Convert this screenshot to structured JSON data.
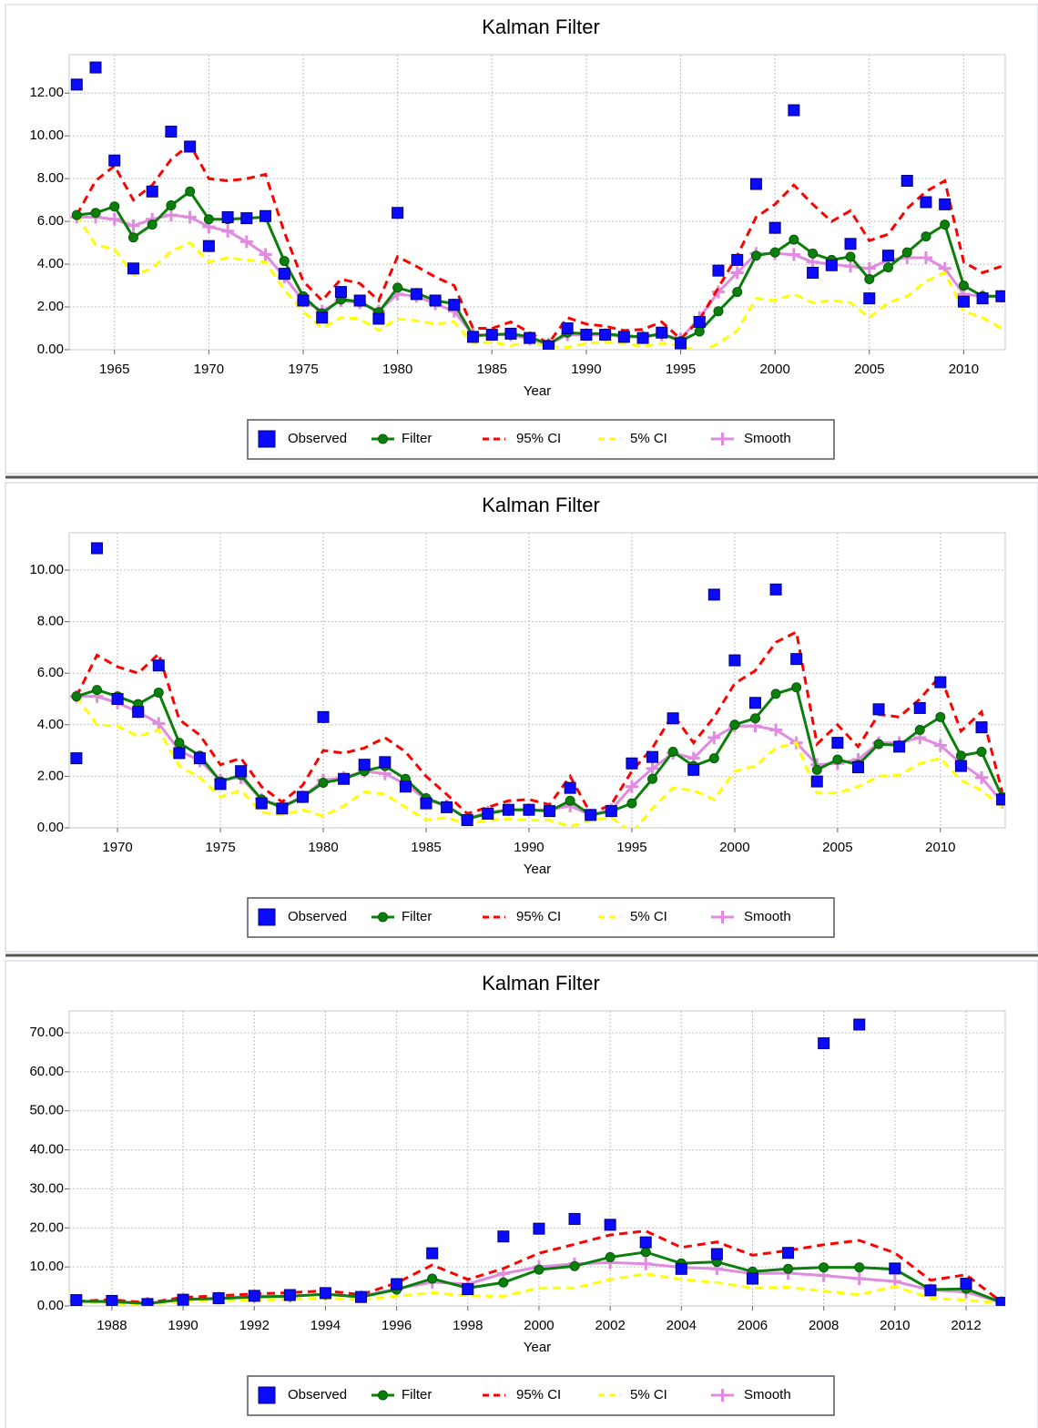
{
  "chart_data": [
    {
      "type": "line",
      "title": "Kalman Filter",
      "x_label": "Year",
      "grid": true,
      "legend": "bottom",
      "xlim": [
        1962.6,
        2012.2
      ],
      "ylim": [
        0,
        13.8
      ],
      "xticks": [
        1965,
        1970,
        1975,
        1980,
        1985,
        1990,
        1995,
        2000,
        2005,
        2010
      ],
      "yticks": [
        {
          "value": 0,
          "label": "0.00"
        },
        {
          "value": 2,
          "label": "2.00"
        },
        {
          "value": 4,
          "label": "4.00"
        },
        {
          "value": 6,
          "label": "6.00"
        },
        {
          "value": 8,
          "label": "8.00"
        },
        {
          "value": 10,
          "label": "10.00"
        },
        {
          "value": 12,
          "label": "12.00"
        }
      ],
      "x": [
        1963,
        1964,
        1965,
        1966,
        1967,
        1968,
        1969,
        1970,
        1971,
        1972,
        1973,
        1974,
        1975,
        1976,
        1977,
        1978,
        1979,
        1980,
        1981,
        1982,
        1983,
        1984,
        1985,
        1986,
        1987,
        1988,
        1989,
        1990,
        1991,
        1992,
        1993,
        1994,
        1995,
        1996,
        1997,
        1998,
        1999,
        2000,
        2001,
        2002,
        2003,
        2004,
        2005,
        2006,
        2007,
        2008,
        2009,
        2010,
        2011,
        2012
      ],
      "series": [
        {
          "name": "Observed",
          "color": "#0a0aff",
          "marker": "square",
          "line": false,
          "values": [
            12.4,
            13.2,
            8.85,
            3.8,
            7.4,
            10.2,
            9.5,
            4.85,
            6.2,
            6.15,
            6.25,
            3.55,
            2.3,
            1.5,
            2.7,
            2.3,
            1.45,
            6.4,
            2.6,
            2.3,
            2.1,
            0.6,
            0.7,
            0.75,
            0.55,
            0.15,
            1.0,
            0.7,
            0.7,
            0.6,
            0.55,
            0.8,
            0.3,
            1.3,
            3.7,
            4.2,
            7.75,
            5.7,
            11.2,
            3.6,
            3.95,
            4.95,
            2.4,
            4.4,
            7.9,
            6.9,
            6.8,
            2.25,
            2.4,
            2.5
          ]
        },
        {
          "name": "Filter",
          "color": "#0b7f0b",
          "marker": "circle",
          "line": true,
          "values": [
            6.3,
            6.4,
            6.7,
            5.25,
            5.85,
            6.75,
            7.4,
            6.1,
            6.1,
            6.15,
            6.2,
            4.15,
            2.5,
            1.7,
            2.35,
            2.25,
            1.75,
            2.9,
            2.65,
            2.3,
            2.15,
            0.65,
            0.7,
            0.75,
            0.6,
            0.25,
            0.8,
            0.75,
            0.75,
            0.65,
            0.6,
            0.75,
            0.4,
            0.85,
            1.8,
            2.7,
            4.4,
            4.55,
            5.15,
            4.5,
            4.2,
            4.35,
            3.3,
            3.85,
            4.55,
            5.3,
            5.85,
            3.0,
            2.5,
            2.5
          ]
        },
        {
          "name": "95% CI",
          "color": "#ff0000",
          "line": true,
          "dashed": true,
          "values": [
            6.3,
            7.9,
            8.6,
            7.0,
            7.7,
            8.9,
            9.6,
            8.0,
            7.9,
            8.0,
            8.2,
            5.5,
            3.2,
            2.3,
            3.3,
            3.1,
            2.3,
            4.35,
            3.9,
            3.4,
            3.0,
            1.0,
            1.0,
            1.3,
            0.8,
            0.3,
            1.5,
            1.2,
            1.1,
            0.9,
            0.95,
            1.3,
            0.5,
            1.4,
            2.9,
            4.4,
            6.2,
            6.8,
            7.7,
            6.8,
            6.0,
            6.5,
            5.1,
            5.4,
            6.6,
            7.4,
            7.9,
            4.1,
            3.6,
            3.9
          ]
        },
        {
          "name": "5% CI",
          "color": "#ffff00",
          "line": true,
          "dashed": true,
          "values": [
            6.3,
            4.9,
            4.7,
            3.5,
            3.8,
            4.6,
            5.0,
            4.1,
            4.3,
            4.2,
            4.1,
            2.8,
            1.8,
            1.0,
            1.5,
            1.45,
            0.9,
            1.45,
            1.35,
            1.2,
            1.3,
            0.3,
            0.35,
            0.2,
            0.35,
            0.15,
            0.1,
            0.3,
            0.35,
            0.3,
            0.15,
            0.3,
            0.2,
            -0.15,
            0.3,
            0.9,
            2.4,
            2.3,
            2.6,
            2.2,
            2.3,
            2.2,
            1.5,
            2.2,
            2.5,
            3.2,
            3.6,
            1.8,
            1.5,
            1.0
          ]
        },
        {
          "name": "Smooth",
          "color": "#e08ae0",
          "marker": "plus",
          "line": true,
          "values": [
            6.2,
            6.2,
            6.1,
            5.8,
            6.1,
            6.3,
            6.2,
            5.75,
            5.55,
            5.05,
            4.45,
            3.4,
            2.3,
            1.8,
            2.3,
            2.2,
            1.8,
            2.6,
            2.5,
            2.15,
            1.8,
            0.7,
            0.7,
            0.7,
            0.5,
            0.25,
            0.7,
            0.7,
            0.7,
            0.6,
            0.6,
            0.7,
            0.5,
            1.5,
            2.7,
            3.6,
            4.5,
            4.5,
            4.45,
            4.1,
            4.0,
            3.9,
            3.8,
            4.2,
            4.3,
            4.3,
            3.8,
            2.6,
            2.5,
            2.5
          ]
        }
      ]
    },
    {
      "type": "line",
      "title": "Kalman Filter",
      "x_label": "Year",
      "grid": true,
      "legend": "bottom",
      "xlim": [
        1967.65,
        2013.15
      ],
      "ylim": [
        0,
        11.45
      ],
      "xticks": [
        1970,
        1975,
        1980,
        1985,
        1990,
        1995,
        2000,
        2005,
        2010
      ],
      "yticks": [
        {
          "value": 0,
          "label": "0.00"
        },
        {
          "value": 2,
          "label": "2.00"
        },
        {
          "value": 4,
          "label": "4.00"
        },
        {
          "value": 6,
          "label": "6.00"
        },
        {
          "value": 8,
          "label": "8.00"
        },
        {
          "value": 10,
          "label": "10.00"
        }
      ],
      "x": [
        1968,
        1969,
        1970,
        1971,
        1972,
        1973,
        1974,
        1975,
        1976,
        1977,
        1978,
        1979,
        1980,
        1981,
        1982,
        1983,
        1984,
        1985,
        1986,
        1987,
        1988,
        1989,
        1990,
        1991,
        1992,
        1993,
        1994,
        1995,
        1996,
        1997,
        1998,
        1999,
        2000,
        2001,
        2002,
        2003,
        2004,
        2005,
        2006,
        2007,
        2008,
        2009,
        2010,
        2011,
        2012,
        2013
      ],
      "series": [
        {
          "name": "Observed",
          "color": "#0a0aff",
          "marker": "square",
          "line": false,
          "values": [
            2.7,
            10.85,
            5.0,
            4.5,
            6.3,
            2.9,
            2.7,
            1.7,
            2.2,
            0.95,
            0.75,
            1.2,
            4.3,
            1.9,
            2.45,
            2.55,
            1.6,
            0.95,
            0.8,
            0.3,
            0.55,
            0.7,
            0.7,
            0.65,
            1.55,
            0.5,
            0.65,
            2.5,
            2.75,
            4.25,
            2.25,
            9.05,
            6.5,
            4.85,
            9.25,
            6.55,
            1.8,
            3.3,
            2.35,
            4.6,
            3.15,
            4.65,
            5.65,
            2.4,
            3.9,
            1.1
          ]
        },
        {
          "name": "Filter",
          "color": "#0b7f0b",
          "marker": "circle",
          "line": true,
          "values": [
            5.1,
            5.35,
            5.1,
            4.8,
            5.25,
            3.3,
            2.8,
            1.8,
            2.05,
            1.1,
            0.8,
            1.2,
            1.75,
            1.9,
            2.2,
            2.4,
            1.9,
            1.15,
            0.85,
            0.35,
            0.55,
            0.7,
            0.7,
            0.65,
            1.05,
            0.5,
            0.65,
            0.95,
            1.9,
            2.95,
            2.4,
            2.7,
            4.0,
            4.25,
            5.2,
            5.45,
            2.25,
            2.65,
            2.45,
            3.25,
            3.2,
            3.8,
            4.3,
            2.8,
            2.95,
            1.2
          ]
        },
        {
          "name": "95% CI",
          "color": "#ff0000",
          "line": true,
          "dashed": true,
          "values": [
            5.1,
            6.7,
            6.25,
            6.0,
            6.75,
            4.2,
            3.6,
            2.45,
            2.7,
            1.6,
            1.0,
            1.65,
            3.0,
            2.9,
            3.1,
            3.5,
            2.95,
            2.0,
            1.3,
            0.55,
            0.8,
            1.05,
            1.1,
            0.9,
            2.0,
            0.55,
            0.9,
            2.2,
            3.1,
            4.4,
            3.3,
            4.3,
            5.6,
            6.1,
            7.2,
            7.6,
            3.25,
            4.0,
            3.15,
            4.4,
            4.3,
            5.0,
            5.9,
            3.75,
            4.5,
            1.4
          ]
        },
        {
          "name": "5% CI",
          "color": "#ffff00",
          "line": true,
          "dashed": true,
          "values": [
            5.1,
            4.0,
            3.95,
            3.55,
            3.8,
            2.4,
            1.95,
            1.2,
            1.45,
            0.6,
            0.5,
            0.7,
            0.45,
            0.85,
            1.4,
            1.3,
            0.8,
            0.3,
            0.4,
            0.15,
            0.3,
            0.35,
            0.3,
            0.3,
            0.05,
            0.3,
            0.4,
            -0.2,
            0.75,
            1.55,
            1.45,
            1.1,
            2.2,
            2.4,
            3.1,
            3.3,
            1.35,
            1.35,
            1.6,
            2.0,
            2.05,
            2.5,
            2.7,
            1.85,
            1.45,
            0.8
          ]
        },
        {
          "name": "Smooth",
          "color": "#e08ae0",
          "marker": "plus",
          "line": true,
          "values": [
            5.1,
            5.1,
            4.85,
            4.5,
            4.05,
            3.0,
            2.6,
            1.85,
            1.95,
            1.1,
            0.85,
            1.2,
            1.85,
            1.95,
            2.2,
            2.1,
            1.7,
            1.1,
            0.85,
            0.35,
            0.6,
            0.7,
            0.7,
            0.7,
            0.85,
            0.5,
            0.7,
            1.6,
            2.3,
            2.9,
            2.7,
            3.5,
            3.95,
            3.95,
            3.8,
            3.3,
            2.45,
            2.5,
            2.65,
            3.3,
            3.3,
            3.5,
            3.2,
            2.5,
            1.95,
            1.0
          ]
        }
      ]
    },
    {
      "type": "line",
      "title": "Kalman Filter",
      "x_label": "Year",
      "grid": true,
      "legend": "bottom",
      "xlim": [
        1986.8,
        2013.1
      ],
      "ylim": [
        0,
        75.6
      ],
      "xticks": [
        1988,
        1990,
        1992,
        1994,
        1996,
        1998,
        2000,
        2002,
        2004,
        2006,
        2008,
        2010,
        2012
      ],
      "yticks": [
        {
          "value": 0,
          "label": "0.00"
        },
        {
          "value": 10,
          "label": "10.00"
        },
        {
          "value": 20,
          "label": "20.00"
        },
        {
          "value": 30,
          "label": "30.00"
        },
        {
          "value": 40,
          "label": "40.00"
        },
        {
          "value": 50,
          "label": "50.00"
        },
        {
          "value": 60,
          "label": "60.00"
        },
        {
          "value": 70,
          "label": "70.00"
        }
      ],
      "x": [
        1987,
        1988,
        1989,
        1990,
        1991,
        1992,
        1993,
        1994,
        1995,
        1996,
        1997,
        1998,
        1999,
        2000,
        2001,
        2002,
        2003,
        2004,
        2005,
        2006,
        2007,
        2008,
        2009,
        2010,
        2011,
        2012,
        2013
      ],
      "series": [
        {
          "name": "Observed",
          "color": "#0a0aff",
          "marker": "square",
          "line": false,
          "values": [
            1.5,
            1.3,
            0.5,
            1.6,
            2.0,
            2.6,
            2.8,
            3.3,
            2.3,
            5.6,
            13.5,
            4.3,
            17.8,
            19.8,
            22.3,
            20.8,
            16.3,
            9.5,
            13.3,
            7.0,
            13.6,
            67.3,
            72.1,
            9.6,
            4.0,
            5.7,
            0.8
          ]
        },
        {
          "name": "Filter",
          "color": "#0b7f0b",
          "marker": "circle",
          "line": true,
          "values": [
            1.2,
            1.1,
            0.6,
            1.7,
            1.9,
            2.3,
            2.5,
            3.0,
            2.3,
            4.2,
            7.0,
            4.6,
            6.0,
            9.3,
            10.2,
            12.5,
            13.8,
            10.9,
            11.3,
            8.8,
            9.5,
            9.9,
            9.9,
            9.4,
            4.2,
            4.4,
            0.9
          ]
        },
        {
          "name": "95% CI",
          "color": "#ff0000",
          "line": true,
          "dashed": true,
          "values": [
            1.2,
            1.6,
            0.8,
            2.2,
            2.6,
            3.1,
            3.4,
            3.9,
            2.9,
            5.9,
            10.5,
            6.8,
            9.6,
            13.5,
            15.8,
            18.2,
            19.2,
            15.0,
            16.4,
            13.0,
            14.2,
            15.7,
            16.8,
            13.6,
            6.6,
            8.0,
            1.0
          ]
        },
        {
          "name": "5% CI",
          "color": "#ffff00",
          "line": true,
          "dashed": true,
          "values": [
            1.2,
            0.6,
            0.4,
            1.2,
            1.3,
            1.5,
            1.7,
            2.0,
            1.6,
            2.5,
            3.4,
            2.6,
            2.5,
            4.6,
            4.6,
            6.8,
            8.2,
            6.8,
            6.0,
            4.6,
            4.8,
            3.8,
            2.9,
            5.0,
            2.0,
            1.5,
            0.7
          ]
        },
        {
          "name": "Smooth",
          "color": "#e08ae0",
          "marker": "plus",
          "line": true,
          "values": [
            1.2,
            1.2,
            0.7,
            1.6,
            2.0,
            2.5,
            2.5,
            3.0,
            2.4,
            4.4,
            6.1,
            5.6,
            8.3,
            10.0,
            10.8,
            11.1,
            10.8,
            9.9,
            9.5,
            8.3,
            8.4,
            7.8,
            7.0,
            6.3,
            4.1,
            3.6,
            0.9
          ]
        }
      ]
    }
  ]
}
